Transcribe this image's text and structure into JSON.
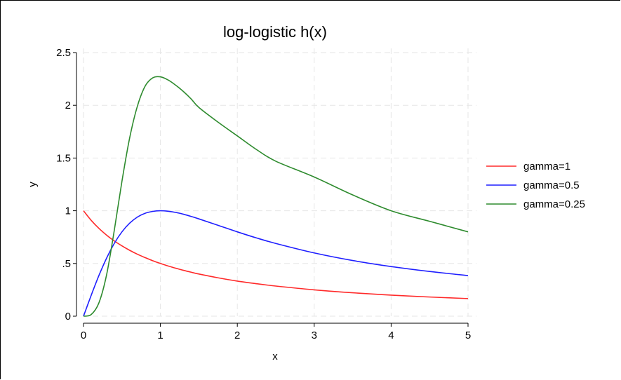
{
  "chart_data": {
    "type": "line",
    "title": "log-logistic h(x)",
    "xlabel": "x",
    "ylabel": "y",
    "xlim": [
      0,
      5
    ],
    "ylim": [
      0,
      2.5
    ],
    "x_ticks": [
      0,
      1,
      2,
      3,
      4,
      5
    ],
    "x_tick_labels": [
      "0",
      "1",
      "2",
      "3",
      "4",
      "5"
    ],
    "y_ticks": [
      0,
      0.5,
      1,
      1.5,
      2,
      2.5
    ],
    "y_tick_labels": [
      "0",
      ".5",
      "1",
      "1.5",
      "2",
      "2.5"
    ],
    "grid": true,
    "legend_position": "right",
    "x": [
      0,
      0.1,
      0.2,
      0.3,
      0.4,
      0.5,
      0.6,
      0.7,
      0.8,
      0.9,
      1.0,
      1.1,
      1.2,
      1.3,
      1.4,
      1.5,
      1.75,
      2.0,
      2.25,
      2.5,
      3.0,
      3.5,
      4.0,
      4.5,
      5.0
    ],
    "series": [
      {
        "name": "gamma=1",
        "color": "#ff2a2a",
        "values": [
          1.0,
          0.909,
          0.833,
          0.769,
          0.714,
          0.667,
          0.625,
          0.588,
          0.556,
          0.526,
          0.5,
          0.476,
          0.455,
          0.435,
          0.417,
          0.4,
          0.364,
          0.333,
          0.308,
          0.286,
          0.25,
          0.222,
          0.2,
          0.182,
          0.167
        ]
      },
      {
        "name": "gamma=0.5",
        "color": "#1f1fff",
        "values": [
          0.0,
          0.198,
          0.385,
          0.55,
          0.69,
          0.8,
          0.882,
          0.94,
          0.976,
          0.994,
          1.0,
          0.995,
          0.984,
          0.967,
          0.946,
          0.923,
          0.862,
          0.8,
          0.742,
          0.69,
          0.6,
          0.528,
          0.471,
          0.424,
          0.385
        ]
      },
      {
        "name": "gamma=0.25",
        "color": "#2e8b2e",
        "values": [
          0.0,
          0.016,
          0.126,
          0.392,
          0.813,
          1.28,
          1.69,
          1.99,
          2.18,
          2.26,
          2.27,
          2.24,
          2.19,
          2.13,
          2.06,
          1.98,
          1.84,
          1.71,
          1.58,
          1.47,
          1.32,
          1.15,
          1.0,
          0.9,
          0.8
        ]
      }
    ]
  }
}
